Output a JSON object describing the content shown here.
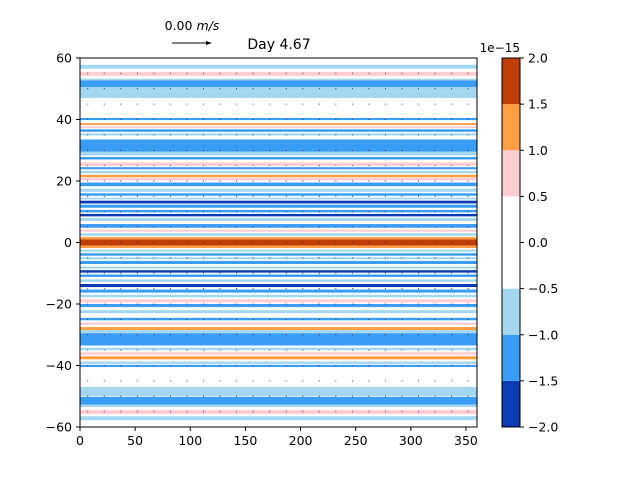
{
  "chart_data": {
    "type": "heatmap",
    "title": "Day 4.67",
    "quiver_key": {
      "value": "0.00",
      "unit": "m/s"
    },
    "x": {
      "range": [
        0,
        360
      ],
      "ticks": [
        0,
        50,
        100,
        150,
        200,
        250,
        300,
        350
      ]
    },
    "y": {
      "range": [
        -60,
        60
      ],
      "ticks": [
        -60,
        -40,
        -20,
        0,
        20,
        40,
        60
      ]
    },
    "colorbar": {
      "scale_label": "1e−15",
      "levels": [
        -2.0,
        -1.5,
        -1.0,
        -0.5,
        0.5,
        1.0,
        1.5,
        2.0
      ],
      "tick_values": [
        -2.0,
        -1.5,
        -1.0,
        -0.5,
        0.0,
        0.5,
        1.0,
        1.5,
        2.0
      ],
      "tick_labels": [
        "−2.0",
        "−1.5",
        "−1.0",
        "−0.5",
        "0.0",
        "0.5",
        "1.0",
        "1.5",
        "2.0"
      ],
      "colors": [
        "#0d3ab5",
        "#3a9df5",
        "#a2d7ef",
        "#ffffff",
        "#ffccd2",
        "#ff9e43",
        "#c13d06"
      ]
    },
    "bands": [
      {
        "y0": 56.5,
        "y1": 57.8,
        "c": "#a2d7ef"
      },
      {
        "y0": 54.2,
        "y1": 55.5,
        "c": "#ffccd2"
      },
      {
        "y0": 52.7,
        "y1": 53.3,
        "c": "#a2d7ef"
      },
      {
        "y0": 50.5,
        "y1": 52.7,
        "c": "#3a9df5"
      },
      {
        "y0": 49.0,
        "y1": 50.5,
        "c": "#a2d7ef"
      },
      {
        "y0": 47.0,
        "y1": 49.0,
        "c": "#a2d7ef"
      },
      {
        "y0": 39.8,
        "y1": 40.5,
        "c": "#3a9df5"
      },
      {
        "y0": 38.2,
        "y1": 38.8,
        "c": "#ff9e43"
      },
      {
        "y0": 37.2,
        "y1": 37.8,
        "c": "#ffccd2"
      },
      {
        "y0": 36.0,
        "y1": 36.8,
        "c": "#3a9df5"
      },
      {
        "y0": 34.8,
        "y1": 35.5,
        "c": "#a2d7ef"
      },
      {
        "y0": 29.5,
        "y1": 33.5,
        "c": "#3a9df5"
      },
      {
        "y0": 28.3,
        "y1": 29.5,
        "c": "#a2d7ef"
      },
      {
        "y0": 27.0,
        "y1": 27.8,
        "c": "#3a9df5"
      },
      {
        "y0": 25.0,
        "y1": 26.0,
        "c": "#ffccd2"
      },
      {
        "y0": 23.8,
        "y1": 24.5,
        "c": "#3a9df5"
      },
      {
        "y0": 22.5,
        "y1": 23.3,
        "c": "#a2d7ef"
      },
      {
        "y0": 21.2,
        "y1": 22.0,
        "c": "#ff9e43"
      },
      {
        "y0": 20.2,
        "y1": 21.0,
        "c": "#ffccd2"
      },
      {
        "y0": 18.3,
        "y1": 19.5,
        "c": "#3a9df5"
      },
      {
        "y0": 16.5,
        "y1": 17.5,
        "c": "#a2d7ef"
      },
      {
        "y0": 15.2,
        "y1": 16.0,
        "c": "#3a9df5"
      },
      {
        "y0": 14.0,
        "y1": 14.6,
        "c": "#a2d7ef"
      },
      {
        "y0": 12.7,
        "y1": 13.6,
        "c": "#0d3ab5"
      },
      {
        "y0": 11.3,
        "y1": 12.3,
        "c": "#3a9df5"
      },
      {
        "y0": 9.8,
        "y1": 10.6,
        "c": "#3a9df5"
      },
      {
        "y0": 8.5,
        "y1": 9.3,
        "c": "#0d3ab5"
      },
      {
        "y0": 7.0,
        "y1": 8.0,
        "c": "#a2d7ef"
      },
      {
        "y0": 4.8,
        "y1": 6.0,
        "c": "#3a9df5"
      },
      {
        "y0": 3.5,
        "y1": 4.2,
        "c": "#ffccd2"
      },
      {
        "y0": 2.2,
        "y1": 3.0,
        "c": "#a2d7ef"
      },
      {
        "y0": 1.0,
        "y1": 1.8,
        "c": "#ff9e43"
      },
      {
        "y0": -1.0,
        "y1": 1.0,
        "c": "#c13d06"
      },
      {
        "y0": -1.8,
        "y1": -1.0,
        "c": "#ff9e43"
      },
      {
        "y0": -3.0,
        "y1": -2.3,
        "c": "#a2d7ef"
      },
      {
        "y0": -4.3,
        "y1": -3.5,
        "c": "#3a9df5"
      },
      {
        "y0": -5.5,
        "y1": -4.8,
        "c": "#a2d7ef"
      },
      {
        "y0": -7.0,
        "y1": -6.0,
        "c": "#3a9df5"
      },
      {
        "y0": -8.5,
        "y1": -7.8,
        "c": "#a2d7ef"
      },
      {
        "y0": -9.8,
        "y1": -9.0,
        "c": "#0d3ab5"
      },
      {
        "y0": -11.2,
        "y1": -10.4,
        "c": "#3a9df5"
      },
      {
        "y0": -12.8,
        "y1": -12.0,
        "c": "#a2d7ef"
      },
      {
        "y0": -14.5,
        "y1": -13.5,
        "c": "#0d3ab5"
      },
      {
        "y0": -16.3,
        "y1": -15.3,
        "c": "#3a9df5"
      },
      {
        "y0": -17.8,
        "y1": -17.0,
        "c": "#a2d7ef"
      },
      {
        "y0": -19.5,
        "y1": -18.5,
        "c": "#ffccd2"
      },
      {
        "y0": -21.0,
        "y1": -20.0,
        "c": "#3a9df5"
      },
      {
        "y0": -23.0,
        "y1": -22.0,
        "c": "#a2d7ef"
      },
      {
        "y0": -25.3,
        "y1": -24.5,
        "c": "#3a9df5"
      },
      {
        "y0": -26.8,
        "y1": -26.0,
        "c": "#ffccd2"
      },
      {
        "y0": -28.5,
        "y1": -27.5,
        "c": "#ff9e43"
      },
      {
        "y0": -29.5,
        "y1": -28.5,
        "c": "#a2d7ef"
      },
      {
        "y0": -33.5,
        "y1": -29.5,
        "c": "#3a9df5"
      },
      {
        "y0": -35.0,
        "y1": -34.2,
        "c": "#a2d7ef"
      },
      {
        "y0": -36.5,
        "y1": -35.7,
        "c": "#ffccd2"
      },
      {
        "y0": -38.0,
        "y1": -37.0,
        "c": "#ff9e43"
      },
      {
        "y0": -39.5,
        "y1": -38.7,
        "c": "#a2d7ef"
      },
      {
        "y0": -40.5,
        "y1": -39.8,
        "c": "#3a9df5"
      },
      {
        "y0": -50.0,
        "y1": -47.0,
        "c": "#a2d7ef"
      },
      {
        "y0": -52.7,
        "y1": -50.2,
        "c": "#3a9df5"
      },
      {
        "y0": -53.5,
        "y1": -52.7,
        "c": "#a2d7ef"
      },
      {
        "y0": -55.8,
        "y1": -54.5,
        "c": "#ffccd2"
      },
      {
        "y0": -57.8,
        "y1": -56.5,
        "c": "#a2d7ef"
      }
    ]
  }
}
